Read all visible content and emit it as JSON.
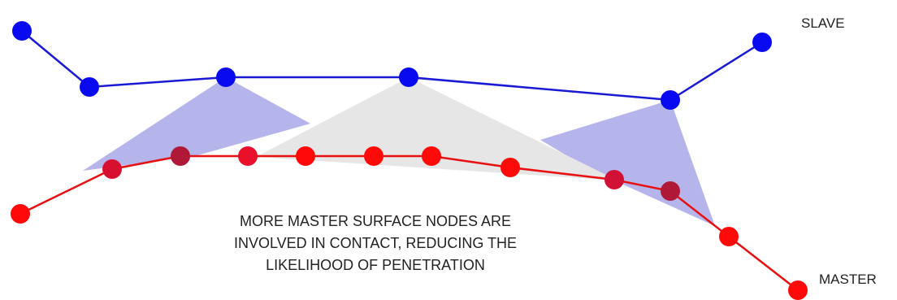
{
  "labels": {
    "slave": "SLAVE",
    "master": "MASTER"
  },
  "caption": {
    "line1": "MORE MASTER SURFACE NODES ARE",
    "line2": "INVOLVED IN CONTACT, REDUCING THE",
    "line3": "LIKELIHOOD OF PENETRATION"
  },
  "colors": {
    "slave_line": "#1a1ad6",
    "slave_node": "#0a0af0",
    "master_line": "#e81010",
    "master_node": "#ff0a0a",
    "master_node_overlap": "#b01838",
    "region_blue": "#a8a8e8",
    "region_gray": "#e6e6e6"
  }
}
